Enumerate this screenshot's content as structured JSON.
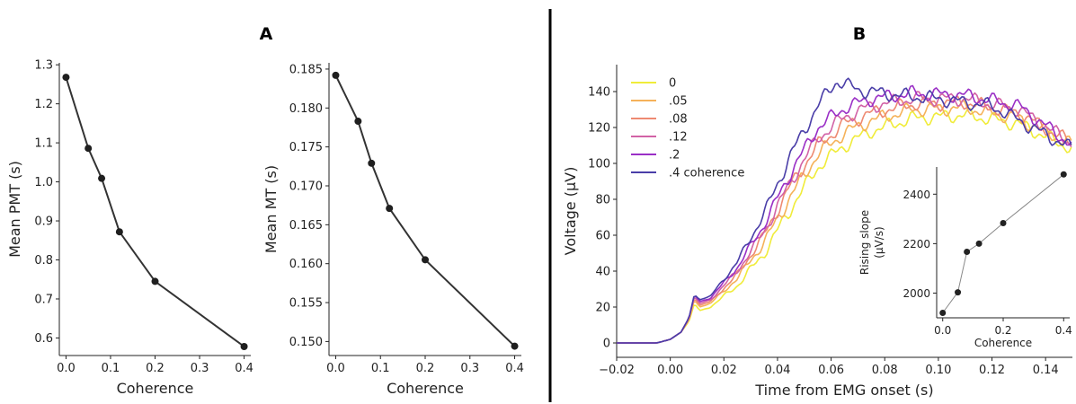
{
  "panels": {
    "a": "A",
    "b": "B"
  },
  "chart_data": [
    {
      "type": "line",
      "xlabel": "Coherence",
      "ylabel": "Mean PMT (s)",
      "x": [
        0,
        0.05,
        0.08,
        0.12,
        0.2,
        0.4
      ],
      "y": [
        1.268,
        1.086,
        1.009,
        0.872,
        0.745,
        0.578
      ],
      "xlim": [
        -0.015,
        0.415
      ],
      "ylim": [
        0.555,
        1.305
      ],
      "xticks": [
        "0.0",
        "0.1",
        "0.2",
        "0.3",
        "0.4"
      ],
      "yticks": [
        "0.6",
        "0.7",
        "0.8",
        "0.9",
        "1.0",
        "1.1",
        "1.2",
        "1.3"
      ],
      "color": "#333333"
    },
    {
      "type": "line",
      "xlabel": "Coherence",
      "ylabel": "Mean MT (s)",
      "x": [
        0,
        0.05,
        0.08,
        0.12,
        0.2,
        0.4
      ],
      "y": [
        0.1842,
        0.1783,
        0.1729,
        0.1671,
        0.1605,
        0.1494
      ],
      "xlim": [
        -0.015,
        0.415
      ],
      "ylim": [
        0.1482,
        0.1858
      ],
      "xticks": [
        "0.0",
        "0.1",
        "0.2",
        "0.3",
        "0.4"
      ],
      "yticks": [
        "0.150",
        "0.155",
        "0.160",
        "0.165",
        "0.170",
        "0.175",
        "0.180",
        "0.185"
      ],
      "color": "#333333"
    },
    {
      "type": "line",
      "xlabel": "Time from EMG onset (s)",
      "ylabel": "Voltage (μV)",
      "xlim": [
        -0.02,
        0.15
      ],
      "ylim": [
        -8,
        155
      ],
      "xticks": [
        "−0.02",
        "0.00",
        "0.02",
        "0.04",
        "0.06",
        "0.08",
        "0.10",
        "0.12",
        "0.14"
      ],
      "yticks": [
        "0",
        "20",
        "40",
        "60",
        "80",
        "100",
        "120",
        "140"
      ],
      "legend_position": "top-left",
      "series": [
        {
          "name": "0",
          "color": "#f0ec3a",
          "seed": 1,
          "points": [
            [
              -0.02,
              0
            ],
            [
              -0.005,
              0
            ],
            [
              0.0,
              2
            ],
            [
              0.004,
              6
            ],
            [
              0.007,
              12
            ],
            [
              0.009,
              22
            ],
            [
              0.011,
              18
            ],
            [
              0.015,
              20
            ],
            [
              0.025,
              32
            ],
            [
              0.035,
              50
            ],
            [
              0.045,
              75
            ],
            [
              0.055,
              98
            ],
            [
              0.065,
              110
            ],
            [
              0.075,
              118
            ],
            [
              0.09,
              125
            ],
            [
              0.11,
              127
            ],
            [
              0.13,
              122
            ],
            [
              0.15,
              108
            ]
          ]
        },
        {
          "name": ".05",
          "color": "#f5b25a",
          "seed": 2,
          "points": [
            [
              -0.02,
              0
            ],
            [
              -0.005,
              0
            ],
            [
              0.0,
              2
            ],
            [
              0.004,
              6
            ],
            [
              0.007,
              13
            ],
            [
              0.009,
              24
            ],
            [
              0.011,
              20
            ],
            [
              0.015,
              22
            ],
            [
              0.025,
              36
            ],
            [
              0.035,
              56
            ],
            [
              0.045,
              82
            ],
            [
              0.055,
              105
            ],
            [
              0.065,
              117
            ],
            [
              0.075,
              124
            ],
            [
              0.09,
              130
            ],
            [
              0.11,
              131
            ],
            [
              0.13,
              125
            ],
            [
              0.15,
              110
            ]
          ]
        },
        {
          "name": ".08",
          "color": "#ee8a72",
          "seed": 3,
          "points": [
            [
              -0.02,
              0
            ],
            [
              -0.005,
              0
            ],
            [
              0.0,
              2
            ],
            [
              0.004,
              6
            ],
            [
              0.007,
              13
            ],
            [
              0.009,
              25
            ],
            [
              0.011,
              21
            ],
            [
              0.015,
              23
            ],
            [
              0.025,
              38
            ],
            [
              0.035,
              60
            ],
            [
              0.045,
              88
            ],
            [
              0.055,
              110
            ],
            [
              0.065,
              122
            ],
            [
              0.075,
              128
            ],
            [
              0.09,
              133
            ],
            [
              0.11,
              134
            ],
            [
              0.13,
              128
            ],
            [
              0.15,
              111
            ]
          ]
        },
        {
          "name": ".12",
          "color": "#d262a6",
          "seed": 4,
          "points": [
            [
              -0.02,
              0
            ],
            [
              -0.005,
              0
            ],
            [
              0.0,
              2
            ],
            [
              0.004,
              6
            ],
            [
              0.007,
              14
            ],
            [
              0.009,
              26
            ],
            [
              0.011,
              22
            ],
            [
              0.015,
              24
            ],
            [
              0.025,
              40
            ],
            [
              0.035,
              62
            ],
            [
              0.045,
              90
            ],
            [
              0.055,
              114
            ],
            [
              0.065,
              126
            ],
            [
              0.075,
              132
            ],
            [
              0.09,
              136
            ],
            [
              0.11,
              136
            ],
            [
              0.13,
              130
            ],
            [
              0.15,
              111
            ]
          ]
        },
        {
          "name": ".2",
          "color": "#9a2fc6",
          "seed": 5,
          "points": [
            [
              -0.02,
              0
            ],
            [
              -0.005,
              0
            ],
            [
              0.0,
              2
            ],
            [
              0.004,
              6
            ],
            [
              0.007,
              14
            ],
            [
              0.009,
              27
            ],
            [
              0.011,
              23
            ],
            [
              0.015,
              25
            ],
            [
              0.025,
              42
            ],
            [
              0.035,
              66
            ],
            [
              0.045,
              95
            ],
            [
              0.055,
              120
            ],
            [
              0.065,
              131
            ],
            [
              0.075,
              136
            ],
            [
              0.09,
              139
            ],
            [
              0.11,
              138
            ],
            [
              0.13,
              132
            ],
            [
              0.15,
              110
            ]
          ]
        },
        {
          "name": ".4 coherence",
          "color": "#4a3ea8",
          "seed": 6,
          "points": [
            [
              -0.02,
              0
            ],
            [
              -0.005,
              0
            ],
            [
              0.0,
              2
            ],
            [
              0.004,
              6
            ],
            [
              0.007,
              14
            ],
            [
              0.009,
              27
            ],
            [
              0.011,
              24
            ],
            [
              0.015,
              26
            ],
            [
              0.025,
              45
            ],
            [
              0.035,
              72
            ],
            [
              0.045,
              105
            ],
            [
              0.055,
              132
            ],
            [
              0.062,
              146
            ],
            [
              0.07,
              141
            ],
            [
              0.085,
              138
            ],
            [
              0.1,
              136
            ],
            [
              0.12,
              132
            ],
            [
              0.15,
              108
            ]
          ]
        }
      ]
    },
    {
      "type": "line",
      "xlabel": "Coherence",
      "ylabel": "Rising slope",
      "ylabel2": "(μV/s)",
      "x": [
        0,
        0.05,
        0.08,
        0.12,
        0.2,
        0.4
      ],
      "y": [
        1920,
        2003,
        2167,
        2200,
        2283,
        2480
      ],
      "xlim": [
        -0.02,
        0.42
      ],
      "ylim": [
        1900,
        2510
      ],
      "xticks": [
        "0.0",
        "0.2",
        "0.4"
      ],
      "yticks": [
        "2000",
        "2200",
        "2400"
      ],
      "color": "#888888",
      "marker_color": "#222222"
    }
  ]
}
